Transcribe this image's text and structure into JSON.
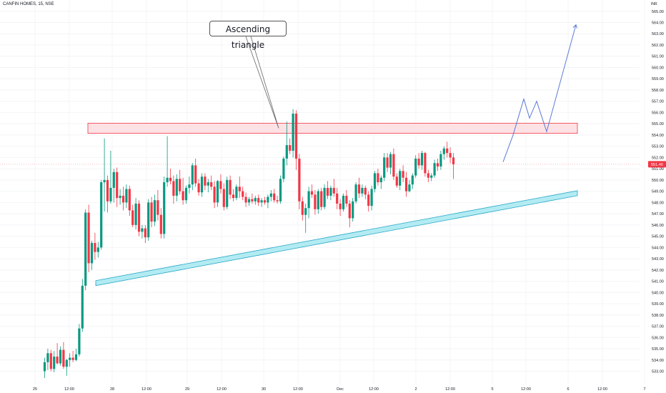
{
  "header": {
    "symbol": "CANFIN HOMES, 15, NSE",
    "currency": "INR"
  },
  "annotation": {
    "label": "Ascending triangle"
  },
  "price_label": {
    "value": "551.40",
    "color": "#f23645"
  },
  "colors": {
    "up": "#089981",
    "down": "#f23645",
    "resistance_fill": "#fde2e5",
    "resistance_stroke": "#f23645",
    "support_fill": "#b2ebf2",
    "support_stroke": "#26a6c8",
    "projection": "#5b7ad6"
  },
  "chart_data": {
    "type": "candlestick",
    "title": "CANFIN HOMES, 15, NSE",
    "y_unit": "INR",
    "ylim": [
      532.4,
      565.8
    ],
    "y_ticks": [
      "533.00",
      "534.00",
      "535.00",
      "536.00",
      "537.00",
      "538.00",
      "539.00",
      "540.00",
      "541.00",
      "542.00",
      "543.00",
      "544.00",
      "545.00",
      "546.00",
      "547.00",
      "548.00",
      "549.00",
      "550.00",
      "551.00",
      "552.00",
      "553.00",
      "554.00",
      "555.00",
      "556.00",
      "557.00",
      "558.00",
      "559.00",
      "560.00",
      "561.00",
      "562.00",
      "563.00",
      "564.00",
      "565.00"
    ],
    "x_ticks": [
      "25",
      "12:00",
      "28",
      "12:00",
      "29",
      "12:00",
      "30",
      "12:00",
      "Dec",
      "12:00",
      "2",
      "12:00",
      "5",
      "12:00",
      "6",
      "12:00",
      "7"
    ],
    "last_price": 551.4,
    "candles": [
      [
        533.0,
        534.2,
        532.4,
        533.8
      ],
      [
        533.8,
        535.0,
        533.1,
        534.6
      ],
      [
        534.6,
        534.9,
        533.0,
        533.2
      ],
      [
        533.2,
        534.8,
        532.9,
        534.3
      ],
      [
        534.3,
        535.5,
        533.6,
        533.7
      ],
      [
        533.7,
        535.2,
        533.5,
        534.9
      ],
      [
        534.9,
        535.6,
        533.2,
        533.4
      ],
      [
        533.4,
        534.1,
        532.6,
        534.0
      ],
      [
        534.0,
        534.6,
        533.4,
        534.2
      ],
      [
        534.2,
        534.8,
        533.8,
        534.0
      ],
      [
        534.0,
        535.0,
        533.9,
        534.5
      ],
      [
        534.5,
        537.2,
        534.3,
        536.8
      ],
      [
        536.8,
        541.2,
        536.5,
        540.6
      ],
      [
        540.6,
        547.4,
        540.2,
        547.1
      ],
      [
        547.1,
        547.8,
        541.8,
        542.6
      ],
      [
        542.6,
        544.6,
        542.0,
        544.4
      ],
      [
        544.4,
        545.3,
        542.9,
        543.6
      ],
      [
        543.6,
        544.5,
        543.1,
        544.0
      ],
      [
        544.0,
        550.0,
        543.8,
        549.8
      ],
      [
        549.8,
        553.7,
        547.2,
        550.0
      ],
      [
        550.0,
        550.4,
        547.1,
        548.1
      ],
      [
        548.1,
        552.6,
        547.9,
        549.3
      ],
      [
        549.3,
        551.0,
        548.0,
        550.7
      ],
      [
        550.7,
        551.1,
        547.6,
        548.4
      ],
      [
        548.4,
        549.2,
        547.8,
        548.6
      ],
      [
        548.6,
        549.4,
        547.3,
        548.0
      ],
      [
        548.0,
        549.6,
        547.5,
        549.2
      ],
      [
        549.2,
        549.5,
        546.8,
        547.3
      ],
      [
        547.3,
        547.8,
        545.8,
        546.0
      ],
      [
        546.0,
        548.4,
        545.6,
        547.9
      ],
      [
        547.9,
        548.2,
        545.0,
        545.4
      ],
      [
        545.4,
        546.0,
        544.8,
        545.7
      ],
      [
        545.7,
        546.0,
        544.4,
        544.9
      ],
      [
        544.9,
        548.3,
        544.6,
        548.0
      ],
      [
        548.0,
        548.5,
        545.8,
        546.3
      ],
      [
        546.3,
        548.7,
        545.9,
        548.2
      ],
      [
        548.2,
        549.1,
        546.4,
        546.9
      ],
      [
        546.9,
        547.5,
        544.8,
        545.2
      ],
      [
        545.2,
        550.3,
        544.8,
        549.8
      ],
      [
        549.8,
        553.9,
        549.4,
        550.2
      ],
      [
        550.2,
        551.0,
        549.6,
        549.9
      ],
      [
        549.9,
        550.4,
        547.9,
        548.6
      ],
      [
        548.6,
        550.5,
        548.1,
        550.1
      ],
      [
        550.1,
        550.9,
        548.7,
        549.0
      ],
      [
        549.0,
        550.2,
        547.8,
        548.2
      ],
      [
        548.2,
        549.5,
        547.9,
        549.3
      ],
      [
        549.3,
        550.3,
        548.8,
        549.6
      ],
      [
        549.6,
        551.5,
        549.1,
        551.3
      ],
      [
        551.3,
        551.9,
        549.4,
        549.7
      ],
      [
        549.7,
        550.1,
        548.6,
        548.9
      ],
      [
        548.9,
        550.6,
        548.5,
        550.3
      ],
      [
        550.3,
        550.6,
        549.1,
        549.5
      ],
      [
        549.5,
        550.1,
        548.9,
        549.8
      ],
      [
        549.8,
        550.4,
        549.1,
        549.4
      ],
      [
        549.4,
        549.9,
        547.5,
        548.0
      ],
      [
        548.0,
        550.0,
        547.6,
        549.9
      ],
      [
        549.9,
        550.5,
        548.8,
        549.2
      ],
      [
        549.2,
        549.7,
        547.3,
        547.6
      ],
      [
        547.6,
        550.3,
        547.4,
        550.0
      ],
      [
        550.0,
        550.4,
        548.3,
        548.7
      ],
      [
        548.7,
        549.2,
        548.1,
        548.4
      ],
      [
        548.4,
        549.6,
        548.2,
        549.4
      ],
      [
        549.4,
        550.3,
        548.4,
        549.0
      ],
      [
        549.0,
        549.4,
        548.2,
        548.5
      ],
      [
        548.5,
        548.9,
        547.6,
        548.0
      ],
      [
        548.0,
        548.5,
        547.7,
        548.3
      ],
      [
        548.3,
        548.8,
        547.9,
        548.1
      ],
      [
        548.1,
        548.6,
        547.8,
        548.4
      ],
      [
        548.4,
        548.7,
        547.7,
        548.0
      ],
      [
        548.0,
        548.4,
        547.6,
        548.2
      ],
      [
        548.2,
        548.5,
        547.8,
        548.0
      ],
      [
        548.0,
        548.7,
        547.5,
        548.5
      ],
      [
        548.5,
        549.1,
        548.1,
        548.8
      ],
      [
        548.8,
        549.2,
        548.0,
        548.2
      ],
      [
        548.2,
        548.6,
        547.9,
        548.1
      ],
      [
        548.1,
        550.4,
        547.9,
        550.1
      ],
      [
        550.1,
        552.1,
        549.8,
        551.9
      ],
      [
        551.9,
        555.2,
        551.3,
        553.1
      ],
      [
        553.1,
        553.7,
        552.3,
        552.6
      ],
      [
        552.6,
        556.3,
        552.0,
        555.9
      ],
      [
        555.9,
        556.2,
        550.9,
        551.9
      ],
      [
        551.9,
        552.3,
        547.4,
        548.1
      ],
      [
        548.1,
        548.5,
        546.4,
        546.9
      ],
      [
        546.9,
        547.9,
        545.3,
        547.5
      ],
      [
        547.5,
        549.4,
        546.6,
        549.0
      ],
      [
        549.0,
        549.6,
        548.4,
        548.7
      ],
      [
        548.7,
        549.1,
        546.9,
        547.4
      ],
      [
        547.4,
        549.2,
        547.0,
        549.0
      ],
      [
        549.0,
        549.3,
        547.3,
        547.6
      ],
      [
        547.6,
        549.6,
        547.4,
        549.3
      ],
      [
        549.3,
        549.9,
        548.3,
        548.6
      ],
      [
        548.6,
        549.5,
        548.2,
        549.3
      ],
      [
        549.3,
        550.1,
        548.5,
        548.8
      ],
      [
        548.8,
        549.3,
        547.4,
        547.9
      ],
      [
        547.9,
        548.3,
        546.8,
        547.4
      ],
      [
        547.4,
        548.8,
        547.2,
        548.6
      ],
      [
        548.6,
        549.1,
        547.6,
        547.9
      ],
      [
        547.9,
        548.2,
        545.8,
        546.6
      ],
      [
        546.6,
        548.4,
        546.3,
        548.1
      ],
      [
        548.1,
        549.8,
        547.9,
        549.6
      ],
      [
        549.6,
        550.2,
        548.4,
        548.8
      ],
      [
        548.8,
        549.6,
        548.5,
        549.3
      ],
      [
        549.3,
        549.5,
        548.3,
        548.7
      ],
      [
        548.7,
        549.0,
        547.2,
        547.7
      ],
      [
        547.7,
        549.5,
        547.3,
        549.2
      ],
      [
        549.2,
        550.8,
        548.9,
        550.6
      ],
      [
        550.6,
        551.0,
        549.5,
        549.8
      ],
      [
        549.8,
        550.4,
        549.2,
        550.2
      ],
      [
        550.2,
        552.4,
        549.9,
        552.0
      ],
      [
        552.0,
        552.4,
        550.7,
        551.1
      ],
      [
        551.1,
        552.5,
        550.5,
        552.3
      ],
      [
        552.3,
        552.8,
        550.0,
        550.3
      ],
      [
        550.3,
        550.6,
        549.3,
        549.5
      ],
      [
        549.5,
        551.0,
        549.1,
        550.8
      ],
      [
        550.8,
        551.3,
        549.8,
        550.2
      ],
      [
        550.2,
        550.7,
        548.5,
        549.0
      ],
      [
        549.0,
        550.0,
        548.9,
        549.6
      ],
      [
        549.6,
        550.6,
        549.2,
        550.4
      ],
      [
        550.4,
        552.2,
        550.2,
        551.9
      ],
      [
        551.9,
        552.4,
        551.0,
        551.3
      ],
      [
        551.3,
        552.6,
        550.9,
        552.4
      ],
      [
        552.4,
        552.5,
        550.3,
        550.6
      ],
      [
        550.6,
        550.9,
        549.8,
        550.2
      ],
      [
        550.2,
        550.6,
        549.9,
        550.4
      ],
      [
        550.4,
        551.8,
        550.2,
        551.5
      ],
      [
        551.5,
        551.9,
        550.8,
        551.2
      ],
      [
        551.2,
        552.6,
        550.9,
        552.3
      ],
      [
        552.3,
        553.0,
        551.8,
        552.8
      ],
      [
        552.8,
        553.4,
        552.0,
        552.4
      ],
      [
        552.4,
        552.9,
        551.5,
        552.0
      ],
      [
        552.0,
        552.4,
        550.1,
        551.4
      ]
    ],
    "resistance_zone": {
      "top": 555.05,
      "bottom": 554.15
    },
    "support_line": {
      "start": [
        541.5,
        541.05
      ],
      "end": [
        548.7,
        549.05
      ]
    },
    "projection_path": [
      551.6,
      554.0,
      557.2,
      555.5,
      557.0,
      554.3,
      563.8
    ]
  }
}
